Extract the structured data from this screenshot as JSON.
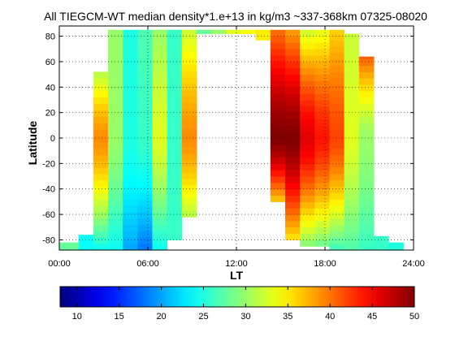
{
  "chart_data": {
    "type": "heatmap",
    "title": "All TIEGCM-WT median density*1.e+13 in kg/m3 ~337-368km 07325-08020",
    "xlabel": "LT",
    "ylabel": "Latitude",
    "xlim": [
      0,
      24
    ],
    "ylim": [
      -88,
      88
    ],
    "x_ticks": [
      0,
      6,
      12,
      18,
      24
    ],
    "x_tick_labels": [
      "00:00",
      "06:00",
      "12:00",
      "18:00",
      "24:00"
    ],
    "y_ticks": [
      -80,
      -60,
      -40,
      -20,
      0,
      20,
      40,
      60,
      80
    ],
    "y_tick_labels": [
      "-80",
      "-60",
      "-40",
      "-20",
      "0",
      "20",
      "40",
      "60",
      "80"
    ],
    "grid": true,
    "colorbar": {
      "min": 8,
      "max": 50,
      "ticks": [
        10,
        15,
        20,
        25,
        30,
        35,
        40,
        45,
        50
      ],
      "tick_labels": [
        "10",
        "15",
        "20",
        "25",
        "30",
        "35",
        "40",
        "45",
        "50"
      ],
      "colormap": "jet"
    },
    "cell_height_deg": 5,
    "columns": [
      {
        "x0": 0.0,
        "x1": 1.3,
        "lat_min": -88,
        "lat_max": -82,
        "south": 28,
        "center": 28,
        "north": 28
      },
      {
        "x0": 1.3,
        "x1": 2.3,
        "lat_min": -88,
        "lat_max": -76,
        "south": 24,
        "center": 24,
        "north": 24
      },
      {
        "x0": 2.3,
        "x1": 3.3,
        "lat_min": -88,
        "lat_max": 52,
        "south": 24,
        "center": 39,
        "north": 31
      },
      {
        "x0": 3.3,
        "x1": 4.3,
        "lat_min": -88,
        "lat_max": 85,
        "south": 24,
        "center": 30,
        "north": 30
      },
      {
        "x0": 4.3,
        "x1": 5.3,
        "lat_min": -88,
        "lat_max": 85,
        "south": 20,
        "center": 25,
        "north": 25
      },
      {
        "x0": 5.3,
        "x1": 6.3,
        "lat_min": -88,
        "lat_max": 85,
        "south": 18,
        "center": 26,
        "north": 27
      },
      {
        "x0": 6.3,
        "x1": 7.3,
        "lat_min": -88,
        "lat_max": 85,
        "south": 24,
        "center": 33,
        "north": 30
      },
      {
        "x0": 7.3,
        "x1": 8.3,
        "lat_min": -80,
        "lat_max": 85,
        "south": 26,
        "center": 26,
        "north": 26
      },
      {
        "x0": 8.3,
        "x1": 9.3,
        "lat_min": -62,
        "lat_max": 85,
        "south": 31,
        "center": 39,
        "north": 32
      },
      {
        "x0": 9.3,
        "x1": 10.3,
        "lat_min": 82,
        "lat_max": 85,
        "south": 28,
        "center": 28,
        "north": 28
      },
      {
        "x0": 10.3,
        "x1": 11.3,
        "lat_min": 82,
        "lat_max": 85,
        "south": 30,
        "center": 30,
        "north": 30
      },
      {
        "x0": 11.3,
        "x1": 12.3,
        "lat_min": 82,
        "lat_max": 85,
        "south": 33,
        "center": 33,
        "north": 33
      },
      {
        "x0": 12.3,
        "x1": 13.3,
        "lat_min": 82,
        "lat_max": 85,
        "south": 34,
        "center": 34,
        "north": 34
      },
      {
        "x0": 13.3,
        "x1": 14.3,
        "lat_min": 77,
        "lat_max": 85,
        "south": 35,
        "center": 35,
        "north": 35
      },
      {
        "x0": 14.3,
        "x1": 15.3,
        "lat_min": -50,
        "lat_max": 85,
        "south": 36,
        "center": 50,
        "north": 40
      },
      {
        "x0": 15.3,
        "x1": 16.3,
        "lat_min": -80,
        "lat_max": 85,
        "south": 35,
        "center": 50,
        "north": 38
      },
      {
        "x0": 16.3,
        "x1": 17.3,
        "lat_min": -85,
        "lat_max": 85,
        "south": 29,
        "center": 46,
        "north": 32
      },
      {
        "x0": 17.3,
        "x1": 18.3,
        "lat_min": -85,
        "lat_max": 85,
        "south": 28,
        "center": 44,
        "north": 33
      },
      {
        "x0": 18.3,
        "x1": 19.3,
        "lat_min": -88,
        "lat_max": 85,
        "south": 26,
        "center": 42,
        "north": 36
      },
      {
        "x0": 19.3,
        "x1": 20.3,
        "lat_min": -88,
        "lat_max": 82,
        "south": 27,
        "center": 33,
        "north": 32
      },
      {
        "x0": 20.3,
        "x1": 21.3,
        "lat_min": -88,
        "lat_max": 64,
        "south": 26,
        "center": 30,
        "north": 41
      },
      {
        "x0": 21.3,
        "x1": 22.3,
        "lat_min": -88,
        "lat_max": -77,
        "south": 26,
        "center": 26,
        "north": 26
      },
      {
        "x0": 22.3,
        "x1": 23.3,
        "lat_min": -88,
        "lat_max": -82,
        "south": 25,
        "center": 25,
        "north": 25
      }
    ]
  }
}
